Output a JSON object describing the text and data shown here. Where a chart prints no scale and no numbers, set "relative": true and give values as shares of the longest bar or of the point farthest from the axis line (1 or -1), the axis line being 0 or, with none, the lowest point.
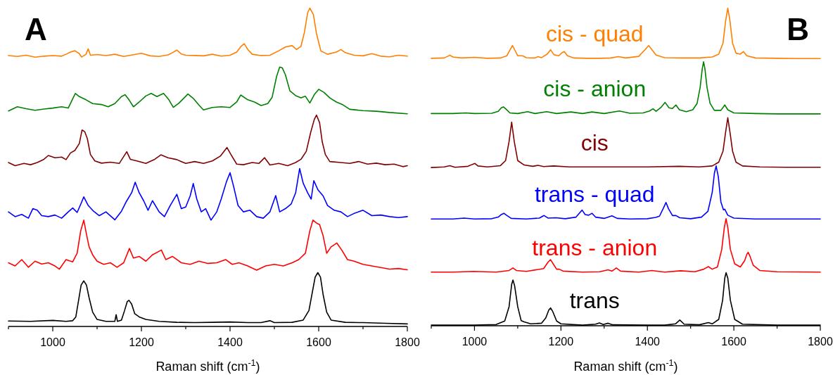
{
  "chart_data": [
    {
      "type": "line",
      "title": "A",
      "xlabel": "Raman shift (cm$^{-1}$)",
      "relative": true,
      "xlim": [
        900,
        1800
      ],
      "xticks": [
        {
          "value": 900,
          "label": null
        },
        1000,
        {
          "value": 1100,
          "label": null
        },
        1200,
        {
          "value": 1300,
          "label": null
        },
        1400,
        {
          "value": 1500,
          "label": null
        },
        1600,
        {
          "value": 1700,
          "label": null
        },
        1800
      ],
      "tick_labels": "x",
      "grid": false,
      "marker": "none",
      "line_style": "solid",
      "series": [
        {
          "color": "#ff7f00",
          "x": [
            900,
            920,
            940,
            960,
            980,
            1000,
            1020,
            1030,
            1040,
            1050,
            1060,
            1065,
            1075,
            1080,
            1085,
            1100,
            1120,
            1140,
            1160,
            1180,
            1200,
            1220,
            1240,
            1260,
            1270,
            1280,
            1290,
            1300,
            1320,
            1340,
            1360,
            1380,
            1400,
            1415,
            1425,
            1432,
            1440,
            1450,
            1470,
            1490,
            1510,
            1525,
            1540,
            1550,
            1560,
            1568,
            1575,
            1580,
            1588,
            1595,
            1605,
            1620,
            1640,
            1650,
            1660,
            1680,
            1700,
            1720,
            1740,
            1760,
            1780,
            1800
          ],
          "values": [
            0.851,
            0.848,
            0.852,
            0.846,
            0.849,
            0.851,
            0.849,
            0.855,
            0.862,
            0.866,
            0.857,
            0.846,
            0.855,
            0.872,
            0.852,
            0.854,
            0.851,
            0.855,
            0.848,
            0.853,
            0.858,
            0.85,
            0.848,
            0.853,
            0.86,
            0.868,
            0.856,
            0.852,
            0.851,
            0.85,
            0.855,
            0.849,
            0.852,
            0.862,
            0.88,
            0.888,
            0.87,
            0.855,
            0.851,
            0.852,
            0.866,
            0.878,
            0.882,
            0.87,
            0.88,
            0.925,
            0.985,
            1.0,
            0.98,
            0.92,
            0.865,
            0.855,
            0.862,
            0.87,
            0.86,
            0.852,
            0.85,
            0.857,
            0.849,
            0.847,
            0.852,
            0.849
          ]
        },
        {
          "color": "#008000",
          "x": [
            900,
            920,
            940,
            960,
            980,
            1000,
            1020,
            1035,
            1045,
            1051,
            1060,
            1075,
            1090,
            1110,
            1125,
            1140,
            1155,
            1163,
            1172,
            1182,
            1195,
            1210,
            1222,
            1235,
            1250,
            1262,
            1272,
            1285,
            1305,
            1318,
            1330,
            1340,
            1360,
            1380,
            1400,
            1415,
            1424,
            1440,
            1455,
            1470,
            1485,
            1495,
            1505,
            1512,
            1518,
            1525,
            1535,
            1548,
            1560,
            1570,
            1580,
            1590,
            1600,
            1612,
            1625,
            1640,
            1655,
            1670,
            1700,
            1730,
            1760,
            1800
          ],
          "values": [
            0.677,
            0.69,
            0.684,
            0.679,
            0.683,
            0.686,
            0.69,
            0.686,
            0.715,
            0.732,
            0.722,
            0.712,
            0.7,
            0.697,
            0.69,
            0.7,
            0.722,
            0.728,
            0.712,
            0.69,
            0.705,
            0.724,
            0.732,
            0.722,
            0.732,
            0.712,
            0.688,
            0.702,
            0.73,
            0.715,
            0.695,
            0.68,
            0.688,
            0.69,
            0.688,
            0.705,
            0.727,
            0.712,
            0.705,
            0.694,
            0.7,
            0.72,
            0.785,
            0.815,
            0.812,
            0.79,
            0.74,
            0.725,
            0.718,
            0.723,
            0.702,
            0.728,
            0.745,
            0.735,
            0.718,
            0.705,
            0.696,
            0.682,
            0.678,
            0.676,
            0.672,
            0.668
          ]
        },
        {
          "color": "#800000",
          "x": [
            900,
            915,
            935,
            950,
            965,
            980,
            990,
            1005,
            1020,
            1030,
            1040,
            1050,
            1060,
            1066,
            1072,
            1078,
            1085,
            1095,
            1110,
            1130,
            1150,
            1167,
            1175,
            1190,
            1210,
            1230,
            1244,
            1260,
            1280,
            1300,
            1320,
            1340,
            1360,
            1378,
            1393,
            1402,
            1415,
            1430,
            1450,
            1465,
            1478,
            1490,
            1510,
            1530,
            1548,
            1560,
            1572,
            1582,
            1590,
            1595,
            1602,
            1608,
            1615,
            1625,
            1650,
            1670,
            1690,
            1710,
            1730,
            1750,
            1770,
            1790,
            1800
          ],
          "values": [
            0.515,
            0.505,
            0.512,
            0.508,
            0.515,
            0.525,
            0.537,
            0.53,
            0.532,
            0.524,
            0.545,
            0.553,
            0.575,
            0.617,
            0.612,
            0.59,
            0.54,
            0.52,
            0.513,
            0.516,
            0.512,
            0.549,
            0.525,
            0.52,
            0.512,
            0.525,
            0.539,
            0.53,
            0.524,
            0.512,
            0.518,
            0.512,
            0.52,
            0.535,
            0.562,
            0.54,
            0.51,
            0.508,
            0.515,
            0.512,
            0.53,
            0.507,
            0.512,
            0.505,
            0.515,
            0.525,
            0.55,
            0.61,
            0.65,
            0.664,
            0.64,
            0.58,
            0.54,
            0.518,
            0.515,
            0.512,
            0.518,
            0.51,
            0.513,
            0.508,
            0.51,
            0.502,
            0.505
          ]
        },
        {
          "color": "#0000ff",
          "x": [
            900,
            915,
            930,
            945,
            955,
            965,
            975,
            990,
            1005,
            1020,
            1035,
            1045,
            1055,
            1065,
            1070,
            1080,
            1092,
            1105,
            1120,
            1140,
            1155,
            1165,
            1178,
            1186,
            1195,
            1205,
            1215,
            1225,
            1240,
            1252,
            1265,
            1280,
            1290,
            1300,
            1310,
            1317,
            1325,
            1335,
            1345,
            1357,
            1370,
            1380,
            1392,
            1400,
            1408,
            1418,
            1430,
            1445,
            1460,
            1475,
            1490,
            1503,
            1512,
            1525,
            1538,
            1548,
            1557,
            1565,
            1575,
            1583,
            1589,
            1598,
            1610,
            1620,
            1635,
            1650,
            1665,
            1680,
            1700,
            1720,
            1740,
            1760,
            1780,
            1800
          ],
          "values": [
            0.36,
            0.345,
            0.352,
            0.34,
            0.37,
            0.365,
            0.348,
            0.345,
            0.35,
            0.34,
            0.36,
            0.372,
            0.358,
            0.39,
            0.407,
            0.38,
            0.362,
            0.348,
            0.36,
            0.335,
            0.362,
            0.39,
            0.42,
            0.453,
            0.42,
            0.395,
            0.365,
            0.395,
            0.36,
            0.345,
            0.38,
            0.415,
            0.37,
            0.375,
            0.41,
            0.449,
            0.4,
            0.36,
            0.37,
            0.334,
            0.36,
            0.4,
            0.455,
            0.483,
            0.44,
            0.38,
            0.36,
            0.365,
            0.345,
            0.34,
            0.36,
            0.411,
            0.36,
            0.37,
            0.385,
            0.42,
            0.496,
            0.45,
            0.42,
            0.4,
            0.458,
            0.43,
            0.41,
            0.38,
            0.365,
            0.36,
            0.345,
            0.355,
            0.365,
            0.348,
            0.35,
            0.345,
            0.342,
            0.345
          ]
        },
        {
          "color": "#ff0000",
          "x": [
            900,
            915,
            930,
            945,
            960,
            975,
            990,
            1005,
            1015,
            1030,
            1045,
            1055,
            1063,
            1070,
            1076,
            1082,
            1090,
            1100,
            1115,
            1130,
            1145,
            1160,
            1173,
            1182,
            1195,
            1210,
            1225,
            1245,
            1255,
            1270,
            1290,
            1310,
            1330,
            1350,
            1370,
            1390,
            1405,
            1420,
            1440,
            1460,
            1480,
            1500,
            1520,
            1540,
            1555,
            1570,
            1580,
            1587,
            1595,
            1602,
            1610,
            1618,
            1628,
            1641,
            1652,
            1665,
            1680,
            1700,
            1720,
            1740,
            1760,
            1780,
            1800
          ],
          "values": [
            0.2,
            0.19,
            0.21,
            0.186,
            0.205,
            0.196,
            0.2,
            0.19,
            0.18,
            0.21,
            0.203,
            0.23,
            0.3,
            0.334,
            0.29,
            0.25,
            0.225,
            0.205,
            0.195,
            0.2,
            0.186,
            0.2,
            0.245,
            0.215,
            0.22,
            0.205,
            0.225,
            0.24,
            0.21,
            0.22,
            0.2,
            0.195,
            0.205,
            0.198,
            0.2,
            0.21,
            0.195,
            0.2,
            0.19,
            0.177,
            0.19,
            0.195,
            0.19,
            0.2,
            0.21,
            0.23,
            0.3,
            0.334,
            0.325,
            0.32,
            0.285,
            0.23,
            0.25,
            0.262,
            0.24,
            0.21,
            0.205,
            0.195,
            0.19,
            0.185,
            0.18,
            0.182,
            0.178
          ]
        },
        {
          "color": "#000000",
          "x": [
            900,
            950,
            1000,
            1030,
            1045,
            1052,
            1058,
            1064,
            1070,
            1076,
            1082,
            1090,
            1100,
            1120,
            1140,
            1143,
            1146,
            1155,
            1162,
            1168,
            1172,
            1178,
            1185,
            1195,
            1210,
            1240,
            1280,
            1320,
            1360,
            1400,
            1440,
            1470,
            1490,
            1500,
            1540,
            1565,
            1578,
            1586,
            1592,
            1598,
            1604,
            1610,
            1618,
            1628,
            1660,
            1700,
            1750,
            1800
          ],
          "values": [
            0.017,
            0.016,
            0.019,
            0.016,
            0.018,
            0.03,
            0.08,
            0.13,
            0.143,
            0.13,
            0.09,
            0.045,
            0.022,
            0.016,
            0.016,
            0.037,
            0.016,
            0.02,
            0.05,
            0.078,
            0.082,
            0.07,
            0.04,
            0.03,
            0.022,
            0.016,
            0.013,
            0.012,
            0.013,
            0.014,
            0.012,
            0.012,
            0.018,
            0.012,
            0.013,
            0.02,
            0.05,
            0.11,
            0.155,
            0.169,
            0.155,
            0.1,
            0.045,
            0.02,
            0.013,
            0.012,
            0.01,
            0.008
          ]
        }
      ]
    },
    {
      "type": "line",
      "title": "B",
      "xlabel": "Raman shift (cm$^{-1}$)",
      "relative": true,
      "xlim": [
        900,
        1800
      ],
      "xticks": [
        {
          "value": 900,
          "label": null
        },
        1000,
        {
          "value": 1100,
          "label": null
        },
        1200,
        {
          "value": 1300,
          "label": null
        },
        1400,
        {
          "value": 1500,
          "label": null
        },
        1600,
        {
          "value": 1700,
          "label": null
        },
        1800
      ],
      "tick_labels": "x",
      "grid": false,
      "marker": "none",
      "line_style": "solid",
      "series": [
        {
          "name": "cis - quad",
          "color": "#ff7f00",
          "x": [
            900,
            930,
            938,
            943,
            950,
            970,
            1000,
            1030,
            1060,
            1075,
            1082,
            1088,
            1094,
            1100,
            1111,
            1120,
            1140,
            1147,
            1155,
            1168,
            1176,
            1184,
            1195,
            1203,
            1208,
            1215,
            1230,
            1260,
            1290,
            1315,
            1333,
            1350,
            1380,
            1395,
            1403,
            1410,
            1420,
            1440,
            1480,
            1520,
            1550,
            1565,
            1575,
            1581,
            1586,
            1591,
            1597,
            1605,
            1615,
            1622,
            1630,
            1650,
            1700,
            1750,
            1800
          ],
          "values": [
            0.842,
            0.843,
            0.848,
            0.852,
            0.846,
            0.843,
            0.845,
            0.842,
            0.843,
            0.85,
            0.868,
            0.882,
            0.866,
            0.85,
            0.85,
            0.844,
            0.843,
            0.847,
            0.844,
            0.855,
            0.869,
            0.853,
            0.85,
            0.86,
            0.863,
            0.85,
            0.843,
            0.842,
            0.842,
            0.843,
            0.847,
            0.843,
            0.848,
            0.87,
            0.882,
            0.87,
            0.852,
            0.844,
            0.843,
            0.843,
            0.846,
            0.855,
            0.89,
            0.96,
            1.0,
            0.96,
            0.89,
            0.858,
            0.855,
            0.863,
            0.85,
            0.843,
            0.842,
            0.841,
            0.841
          ]
        },
        {
          "name": "cis - anion",
          "color": "#008000",
          "x": [
            900,
            950,
            980,
            1000,
            1040,
            1055,
            1062,
            1067,
            1073,
            1082,
            1100,
            1123,
            1140,
            1167,
            1190,
            1223,
            1250,
            1272,
            1300,
            1335,
            1360,
            1390,
            1405,
            1413,
            1420,
            1432,
            1441,
            1450,
            1458,
            1466,
            1474,
            1490,
            1505,
            1515,
            1522,
            1527,
            1530,
            1533,
            1538,
            1545,
            1555,
            1570,
            1579,
            1586,
            1600,
            1650,
            1700,
            1800
          ],
          "values": [
            0.668,
            0.668,
            0.67,
            0.668,
            0.669,
            0.675,
            0.686,
            0.689,
            0.682,
            0.67,
            0.668,
            0.674,
            0.668,
            0.674,
            0.668,
            0.673,
            0.668,
            0.673,
            0.668,
            0.676,
            0.669,
            0.67,
            0.676,
            0.683,
            0.675,
            0.688,
            0.703,
            0.686,
            0.684,
            0.695,
            0.68,
            0.674,
            0.68,
            0.7,
            0.75,
            0.81,
            0.831,
            0.81,
            0.75,
            0.7,
            0.678,
            0.678,
            0.695,
            0.68,
            0.67,
            0.668,
            0.667,
            0.667
          ]
        },
        {
          "name": "cis",
          "color": "#800000",
          "x": [
            900,
            930,
            943,
            955,
            985,
            995,
            1001,
            1008,
            1030,
            1060,
            1072,
            1080,
            1086,
            1092,
            1100,
            1115,
            1135,
            1147,
            1160,
            1183,
            1220,
            1280,
            1340,
            1400,
            1474,
            1520,
            1550,
            1565,
            1575,
            1581,
            1586,
            1591,
            1597,
            1605,
            1620,
            1660,
            1720,
            1800
          ],
          "values": [
            0.498,
            0.5,
            0.504,
            0.499,
            0.502,
            0.508,
            0.511,
            0.503,
            0.5,
            0.504,
            0.52,
            0.58,
            0.641,
            0.58,
            0.52,
            0.506,
            0.502,
            0.505,
            0.501,
            0.503,
            0.5,
            0.5,
            0.5,
            0.5,
            0.502,
            0.5,
            0.503,
            0.515,
            0.55,
            0.61,
            0.655,
            0.61,
            0.55,
            0.515,
            0.503,
            0.5,
            0.499,
            0.499
          ]
        },
        {
          "name": "trans - quad",
          "color": "#0000ff",
          "x": [
            900,
            950,
            976,
            1000,
            1040,
            1055,
            1062,
            1068,
            1074,
            1085,
            1120,
            1150,
            1161,
            1170,
            1188,
            1210,
            1235,
            1243,
            1249,
            1256,
            1264,
            1272,
            1280,
            1300,
            1318,
            1330,
            1360,
            1400,
            1419,
            1428,
            1437,
            1443,
            1449,
            1458,
            1466,
            1475,
            1500,
            1525,
            1540,
            1550,
            1555,
            1559,
            1564,
            1570,
            1576,
            1579,
            1586,
            1600,
            1650,
            1700,
            1800
          ],
          "values": [
            0.336,
            0.336,
            0.339,
            0.336,
            0.337,
            0.342,
            0.35,
            0.354,
            0.348,
            0.338,
            0.336,
            0.339,
            0.347,
            0.339,
            0.34,
            0.337,
            0.342,
            0.355,
            0.364,
            0.35,
            0.348,
            0.354,
            0.342,
            0.338,
            0.346,
            0.338,
            0.336,
            0.337,
            0.341,
            0.345,
            0.37,
            0.388,
            0.368,
            0.347,
            0.347,
            0.34,
            0.337,
            0.342,
            0.36,
            0.42,
            0.48,
            0.503,
            0.47,
            0.39,
            0.365,
            0.367,
            0.348,
            0.339,
            0.336,
            0.336,
            0.336
          ]
        },
        {
          "name": "trans - anion",
          "color": "#ff0000",
          "x": [
            900,
            950,
            998,
            1050,
            1080,
            1089,
            1097,
            1120,
            1160,
            1170,
            1176,
            1182,
            1190,
            1196,
            1205,
            1250,
            1290,
            1309,
            1318,
            1328,
            1338,
            1380,
            1410,
            1440,
            1477,
            1510,
            1530,
            1541,
            1550,
            1562,
            1572,
            1578,
            1582,
            1586,
            1592,
            1602,
            1615,
            1625,
            1630,
            1633,
            1637,
            1645,
            1660,
            1700,
            1800
          ],
          "values": [
            0.169,
            0.169,
            0.171,
            0.169,
            0.174,
            0.182,
            0.174,
            0.171,
            0.18,
            0.2,
            0.208,
            0.195,
            0.178,
            0.178,
            0.172,
            0.169,
            0.17,
            0.176,
            0.172,
            0.182,
            0.172,
            0.169,
            0.174,
            0.169,
            0.173,
            0.17,
            0.178,
            0.186,
            0.178,
            0.185,
            0.24,
            0.31,
            0.337,
            0.31,
            0.24,
            0.195,
            0.185,
            0.205,
            0.225,
            0.231,
            0.22,
            0.19,
            0.174,
            0.17,
            0.169
          ]
        },
        {
          "name": "trans",
          "color": "#000000",
          "x": [
            900,
            1000,
            1050,
            1070,
            1080,
            1086,
            1089,
            1093,
            1100,
            1108,
            1115,
            1130,
            1155,
            1165,
            1172,
            1176,
            1181,
            1190,
            1200,
            1250,
            1280,
            1289,
            1298,
            1309,
            1320,
            1400,
            1440,
            1465,
            1475,
            1485,
            1520,
            1541,
            1550,
            1565,
            1574,
            1579,
            1582,
            1586,
            1592,
            1602,
            1620,
            1700,
            1800
          ],
          "values": [
            0.002,
            0.002,
            0.004,
            0.015,
            0.06,
            0.13,
            0.144,
            0.125,
            0.06,
            0.016,
            0.012,
            0.006,
            0.008,
            0.025,
            0.05,
            0.056,
            0.045,
            0.015,
            0.006,
            0.002,
            0.005,
            0.009,
            0.004,
            0.008,
            0.003,
            0.002,
            0.002,
            0.006,
            0.018,
            0.005,
            0.003,
            0.01,
            0.006,
            0.02,
            0.08,
            0.15,
            0.167,
            0.15,
            0.08,
            0.02,
            0.005,
            0.002,
            0.002
          ]
        }
      ]
    }
  ]
}
